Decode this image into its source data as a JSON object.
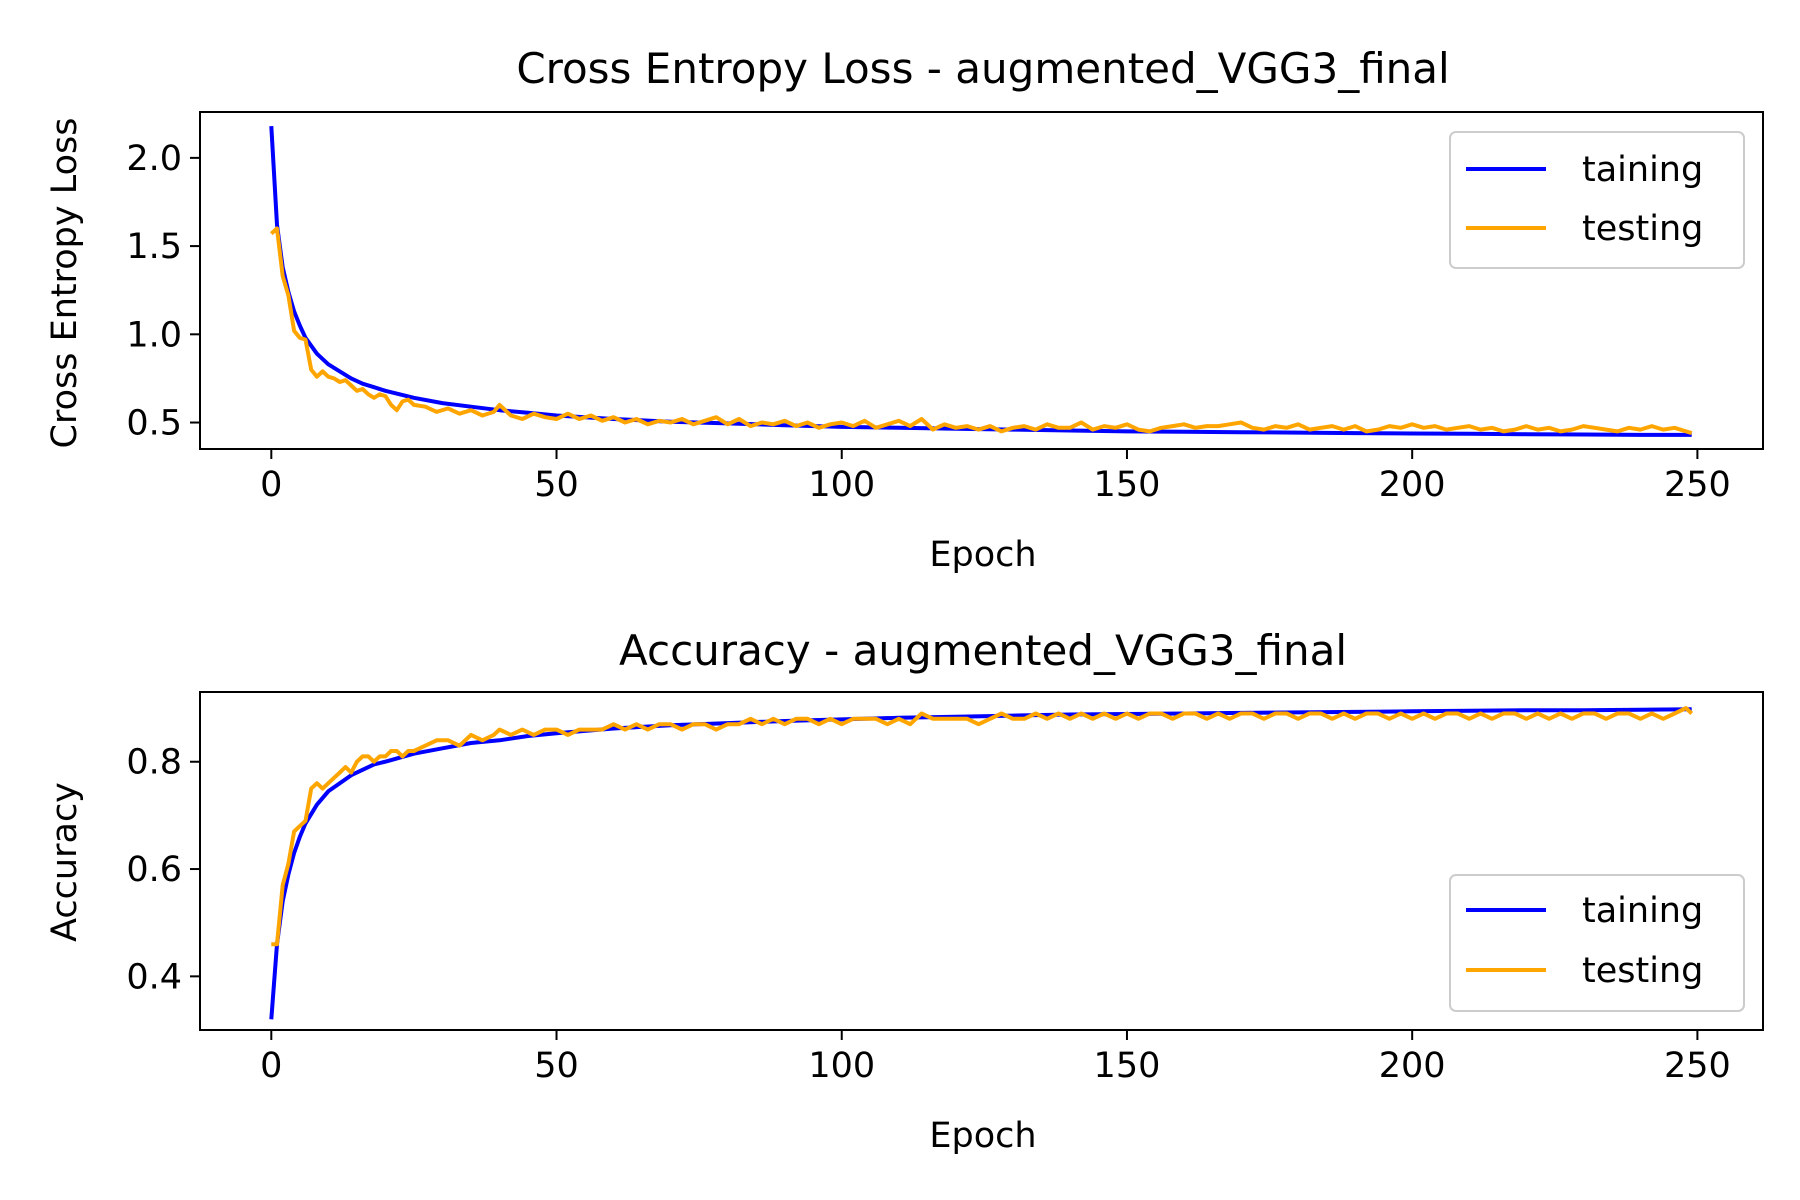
{
  "colors": {
    "training": "#0000ff",
    "testing": "#ffa500"
  },
  "chart_data": [
    {
      "type": "line",
      "title": "Cross Entropy Loss - augmented_VGG3_final",
      "xlabel": "Epoch",
      "ylabel": "Cross Entropy Loss",
      "xlim": [
        -12.5,
        261.5
      ],
      "ylim": [
        0.35,
        2.26
      ],
      "xticks": [
        0,
        50,
        100,
        150,
        200,
        250
      ],
      "xtick_labels": [
        "0",
        "50",
        "100",
        "150",
        "200",
        "250"
      ],
      "yticks": [
        0.5,
        1.0,
        1.5,
        2.0
      ],
      "ytick_labels": [
        "0.5",
        "1.0",
        "1.5",
        "2.0"
      ],
      "grid": false,
      "legend_position": "top-right",
      "series": [
        {
          "name": "taining",
          "color": "#0000ff",
          "x": [
            0,
            1,
            2,
            3,
            4,
            5,
            6,
            8,
            10,
            12,
            14,
            16,
            18,
            20,
            25,
            30,
            35,
            40,
            45,
            50,
            60,
            70,
            80,
            90,
            100,
            110,
            120,
            130,
            140,
            150,
            160,
            170,
            180,
            190,
            200,
            210,
            220,
            230,
            240,
            249
          ],
          "y": [
            2.18,
            1.62,
            1.38,
            1.24,
            1.13,
            1.05,
            0.98,
            0.89,
            0.83,
            0.79,
            0.75,
            0.72,
            0.7,
            0.68,
            0.64,
            0.61,
            0.59,
            0.57,
            0.555,
            0.54,
            0.52,
            0.505,
            0.495,
            0.485,
            0.475,
            0.47,
            0.465,
            0.46,
            0.455,
            0.45,
            0.448,
            0.445,
            0.443,
            0.44,
            0.438,
            0.436,
            0.434,
            0.432,
            0.43,
            0.43
          ]
        },
        {
          "name": "testing",
          "color": "#ffa500",
          "x": [
            0,
            1,
            2,
            3,
            4,
            5,
            6,
            7,
            8,
            9,
            10,
            11,
            12,
            13,
            14,
            15,
            16,
            17,
            18,
            19,
            20,
            21,
            22,
            23,
            24,
            25,
            27,
            29,
            31,
            33,
            35,
            37,
            39,
            40,
            42,
            44,
            46,
            48,
            50,
            52,
            54,
            56,
            58,
            60,
            62,
            64,
            66,
            68,
            70,
            72,
            74,
            76,
            78,
            80,
            82,
            84,
            86,
            88,
            90,
            92,
            94,
            96,
            98,
            100,
            102,
            104,
            106,
            108,
            110,
            112,
            114,
            116,
            118,
            120,
            122,
            124,
            126,
            128,
            130,
            132,
            134,
            136,
            138,
            140,
            142,
            144,
            146,
            148,
            150,
            152,
            154,
            156,
            158,
            160,
            162,
            164,
            166,
            168,
            170,
            172,
            174,
            176,
            178,
            180,
            182,
            184,
            186,
            188,
            190,
            192,
            194,
            196,
            198,
            200,
            202,
            204,
            206,
            208,
            210,
            212,
            214,
            216,
            218,
            220,
            222,
            224,
            226,
            228,
            230,
            232,
            234,
            236,
            238,
            240,
            242,
            244,
            246,
            248,
            249
          ],
          "y": [
            1.57,
            1.6,
            1.33,
            1.22,
            1.02,
            0.98,
            0.97,
            0.8,
            0.76,
            0.79,
            0.76,
            0.75,
            0.73,
            0.74,
            0.71,
            0.68,
            0.69,
            0.66,
            0.64,
            0.66,
            0.65,
            0.6,
            0.57,
            0.62,
            0.63,
            0.6,
            0.59,
            0.56,
            0.58,
            0.55,
            0.57,
            0.54,
            0.56,
            0.6,
            0.54,
            0.52,
            0.55,
            0.53,
            0.52,
            0.55,
            0.52,
            0.54,
            0.51,
            0.53,
            0.5,
            0.52,
            0.49,
            0.51,
            0.5,
            0.52,
            0.49,
            0.51,
            0.53,
            0.49,
            0.52,
            0.48,
            0.5,
            0.49,
            0.51,
            0.48,
            0.5,
            0.47,
            0.49,
            0.5,
            0.48,
            0.51,
            0.47,
            0.49,
            0.51,
            0.48,
            0.52,
            0.46,
            0.49,
            0.47,
            0.48,
            0.46,
            0.48,
            0.45,
            0.47,
            0.48,
            0.46,
            0.49,
            0.47,
            0.47,
            0.5,
            0.46,
            0.48,
            0.47,
            0.49,
            0.46,
            0.45,
            0.47,
            0.48,
            0.49,
            0.47,
            0.48,
            0.48,
            0.49,
            0.5,
            0.47,
            0.46,
            0.48,
            0.47,
            0.49,
            0.46,
            0.47,
            0.48,
            0.46,
            0.48,
            0.45,
            0.46,
            0.48,
            0.47,
            0.49,
            0.47,
            0.48,
            0.46,
            0.47,
            0.48,
            0.46,
            0.47,
            0.45,
            0.46,
            0.48,
            0.46,
            0.47,
            0.45,
            0.46,
            0.48,
            0.47,
            0.46,
            0.45,
            0.47,
            0.46,
            0.48,
            0.46,
            0.47,
            0.45,
            0.44
          ]
        }
      ]
    },
    {
      "type": "line",
      "title": "Accuracy - augmented_VGG3_final",
      "xlabel": "Epoch",
      "ylabel": "Accuracy",
      "xlim": [
        -12.5,
        261.5
      ],
      "ylim": [
        0.3,
        0.93
      ],
      "xticks": [
        0,
        50,
        100,
        150,
        200,
        250
      ],
      "xtick_labels": [
        "0",
        "50",
        "100",
        "150",
        "200",
        "250"
      ],
      "yticks": [
        0.4,
        0.6,
        0.8
      ],
      "ytick_labels": [
        "0.4",
        "0.6",
        "0.8"
      ],
      "grid": false,
      "legend_position": "bottom-right",
      "series": [
        {
          "name": "taining",
          "color": "#0000ff",
          "x": [
            0,
            1,
            2,
            3,
            4,
            5,
            6,
            8,
            10,
            12,
            14,
            16,
            18,
            20,
            25,
            30,
            35,
            40,
            45,
            50,
            60,
            70,
            80,
            90,
            100,
            110,
            120,
            130,
            140,
            150,
            160,
            170,
            180,
            190,
            200,
            210,
            220,
            230,
            240,
            249
          ],
          "y": [
            0.32,
            0.46,
            0.54,
            0.59,
            0.63,
            0.66,
            0.685,
            0.72,
            0.745,
            0.76,
            0.775,
            0.785,
            0.795,
            0.8,
            0.815,
            0.825,
            0.835,
            0.84,
            0.848,
            0.853,
            0.862,
            0.868,
            0.872,
            0.876,
            0.879,
            0.882,
            0.884,
            0.886,
            0.888,
            0.889,
            0.89,
            0.891,
            0.892,
            0.893,
            0.894,
            0.895,
            0.896,
            0.896,
            0.897,
            0.898
          ]
        },
        {
          "name": "testing",
          "color": "#ffa500",
          "x": [
            0,
            1,
            2,
            3,
            4,
            5,
            6,
            7,
            8,
            9,
            10,
            11,
            12,
            13,
            14,
            15,
            16,
            17,
            18,
            19,
            20,
            21,
            22,
            23,
            24,
            25,
            27,
            29,
            31,
            33,
            35,
            37,
            39,
            40,
            42,
            44,
            46,
            48,
            50,
            52,
            54,
            56,
            58,
            60,
            62,
            64,
            66,
            68,
            70,
            72,
            74,
            76,
            78,
            80,
            82,
            84,
            86,
            88,
            90,
            92,
            94,
            96,
            98,
            100,
            102,
            104,
            106,
            108,
            110,
            112,
            114,
            116,
            118,
            120,
            122,
            124,
            126,
            128,
            130,
            132,
            134,
            136,
            138,
            140,
            142,
            144,
            146,
            148,
            150,
            152,
            154,
            156,
            158,
            160,
            162,
            164,
            166,
            168,
            170,
            172,
            174,
            176,
            178,
            180,
            182,
            184,
            186,
            188,
            190,
            192,
            194,
            196,
            198,
            200,
            202,
            204,
            206,
            208,
            210,
            212,
            214,
            216,
            218,
            220,
            222,
            224,
            226,
            228,
            230,
            232,
            234,
            236,
            238,
            240,
            242,
            244,
            246,
            248,
            249
          ],
          "y": [
            0.46,
            0.46,
            0.57,
            0.61,
            0.67,
            0.68,
            0.69,
            0.75,
            0.76,
            0.75,
            0.76,
            0.77,
            0.78,
            0.79,
            0.78,
            0.8,
            0.81,
            0.81,
            0.8,
            0.81,
            0.81,
            0.82,
            0.82,
            0.81,
            0.82,
            0.82,
            0.83,
            0.84,
            0.84,
            0.83,
            0.85,
            0.84,
            0.85,
            0.86,
            0.85,
            0.86,
            0.85,
            0.86,
            0.86,
            0.85,
            0.86,
            0.86,
            0.86,
            0.87,
            0.86,
            0.87,
            0.86,
            0.87,
            0.87,
            0.86,
            0.87,
            0.87,
            0.86,
            0.87,
            0.87,
            0.88,
            0.87,
            0.88,
            0.87,
            0.88,
            0.88,
            0.87,
            0.88,
            0.87,
            0.88,
            0.88,
            0.88,
            0.87,
            0.88,
            0.87,
            0.89,
            0.88,
            0.88,
            0.88,
            0.88,
            0.87,
            0.88,
            0.89,
            0.88,
            0.88,
            0.89,
            0.88,
            0.89,
            0.88,
            0.89,
            0.88,
            0.89,
            0.88,
            0.89,
            0.88,
            0.89,
            0.89,
            0.88,
            0.89,
            0.89,
            0.88,
            0.89,
            0.88,
            0.89,
            0.89,
            0.88,
            0.89,
            0.89,
            0.88,
            0.89,
            0.89,
            0.88,
            0.89,
            0.88,
            0.89,
            0.89,
            0.88,
            0.89,
            0.88,
            0.89,
            0.88,
            0.89,
            0.89,
            0.88,
            0.89,
            0.88,
            0.89,
            0.89,
            0.88,
            0.89,
            0.88,
            0.89,
            0.88,
            0.89,
            0.89,
            0.88,
            0.89,
            0.89,
            0.88,
            0.89,
            0.88,
            0.89,
            0.9,
            0.89
          ]
        }
      ]
    }
  ]
}
